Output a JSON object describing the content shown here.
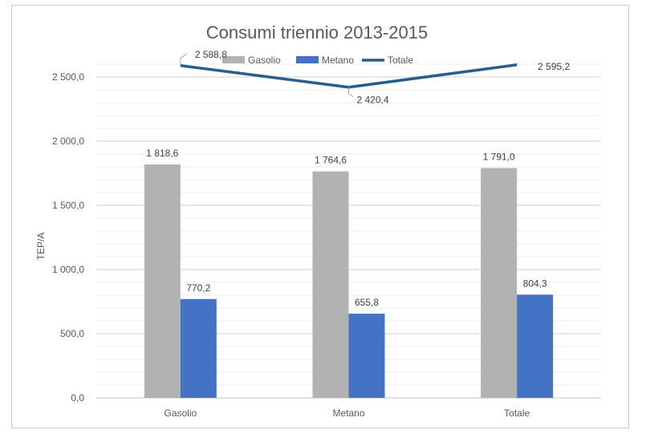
{
  "chart_data": {
    "type": "bar",
    "title": "Consumi triennio 2013-2015",
    "xlabel": "",
    "ylabel": "TEP/A",
    "ylim": [
      0,
      2750
    ],
    "ytick_step": 500,
    "minor_step": 100,
    "yticks": [
      "0,0",
      "500,0",
      "1 000,0",
      "1 500,0",
      "2 000,0",
      "2 500,0"
    ],
    "categories": [
      "Gasolio",
      "Metano",
      "Totale"
    ],
    "series": [
      {
        "name": "Gasolio",
        "kind": "bar",
        "color": "#b2b2b2",
        "values": [
          1818.6,
          1764.6,
          1791.0
        ],
        "labels": [
          "1 818,6",
          "1 764,6",
          "1 791,0"
        ]
      },
      {
        "name": "Metano",
        "kind": "bar",
        "color": "#4472c4",
        "values": [
          770.2,
          655.8,
          804.3
        ],
        "labels": [
          "770,2",
          "655,8",
          "804,3"
        ]
      },
      {
        "name": "Totale",
        "kind": "line",
        "color": "#255e91",
        "values": [
          2588.8,
          2420.4,
          2595.2
        ],
        "labels": [
          "2 588,8",
          "2 420,4",
          "2 595,2"
        ]
      }
    ],
    "legend_position": "top",
    "grid": true
  }
}
